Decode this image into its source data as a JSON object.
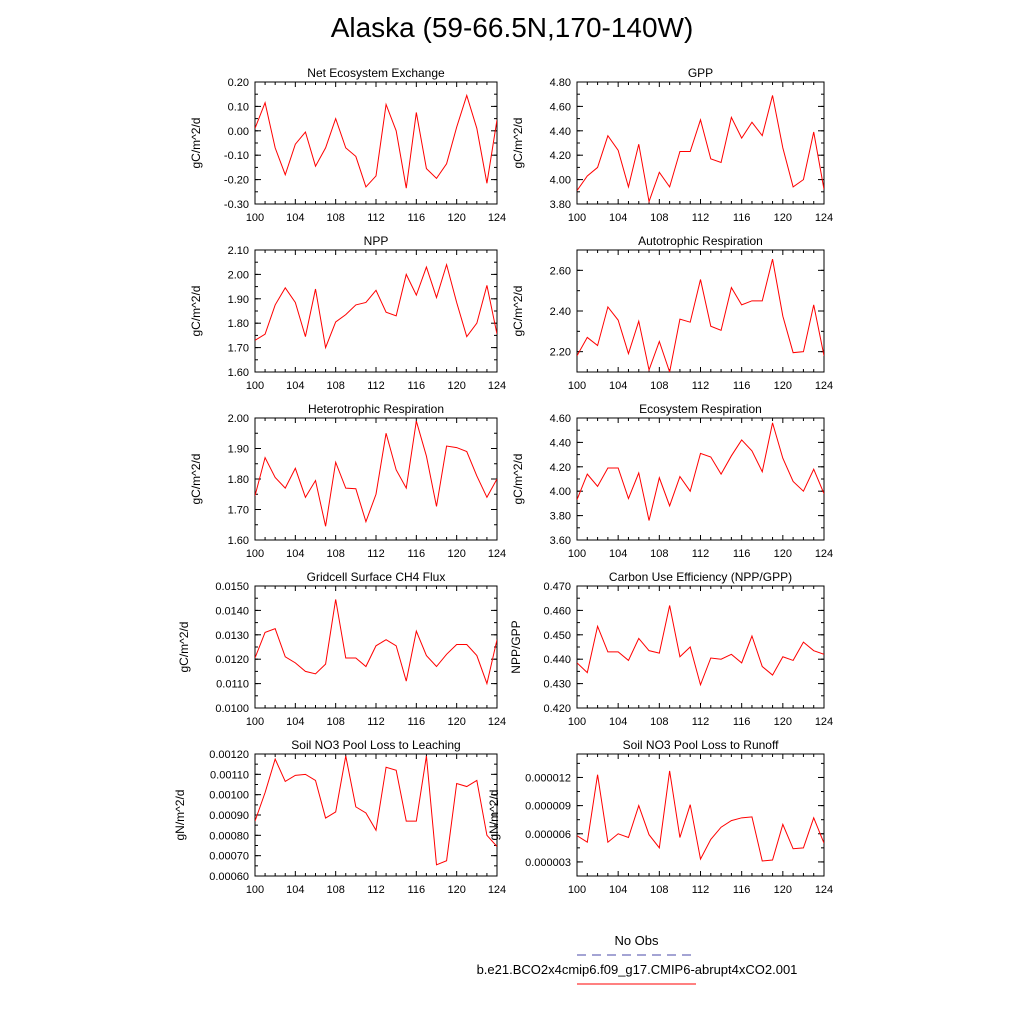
{
  "title": "Alaska (59-66.5N,170-140W)",
  "colors": {
    "model_line": "#ff0000",
    "obs_line": "#4a4aaa",
    "axis": "#000000"
  },
  "legend": {
    "obs_label": "No Obs",
    "model_label": "b.e21.BCO2x4cmip6.f09_g17.CMIP6-abrupt4xCO2.001"
  },
  "chart_data": [
    {
      "type": "line",
      "title": "Net Ecosystem Exchange",
      "ylabel": "gC/m^2/d",
      "xlim": [
        100,
        124
      ],
      "ylim": [
        -0.3,
        0.2
      ],
      "xticks": [
        100,
        104,
        108,
        112,
        116,
        120,
        124
      ],
      "yticks": [
        -0.3,
        -0.2,
        -0.1,
        0.0,
        0.1,
        0.2
      ],
      "yticklabels": [
        "-0.30",
        "-0.20",
        "-0.10",
        "0.00",
        "0.10",
        "0.20"
      ],
      "x": [
        100,
        101,
        102,
        103,
        104,
        105,
        106,
        107,
        108,
        109,
        110,
        111,
        112,
        113,
        114,
        115,
        116,
        117,
        118,
        119,
        120,
        121,
        122,
        123,
        124
      ],
      "values": [
        0.01,
        0.115,
        -0.07,
        -0.18,
        -0.055,
        -0.005,
        -0.145,
        -0.07,
        0.05,
        -0.07,
        -0.105,
        -0.23,
        -0.185,
        0.108,
        0.0,
        -0.235,
        0.075,
        -0.155,
        -0.195,
        -0.135,
        0.015,
        0.145,
        0.01,
        -0.215,
        0.045
      ]
    },
    {
      "type": "line",
      "title": "GPP",
      "ylabel": "gC/m^2/d",
      "xlim": [
        100,
        124
      ],
      "ylim": [
        3.8,
        4.8
      ],
      "xticks": [
        100,
        104,
        108,
        112,
        116,
        120,
        124
      ],
      "yticks": [
        3.8,
        4.0,
        4.2,
        4.4,
        4.6,
        4.8
      ],
      "yticklabels": [
        "3.80",
        "4.00",
        "4.20",
        "4.40",
        "4.60",
        "4.80"
      ],
      "x": [
        100,
        101,
        102,
        103,
        104,
        105,
        106,
        107,
        108,
        109,
        110,
        111,
        112,
        113,
        114,
        115,
        116,
        117,
        118,
        119,
        120,
        121,
        122,
        123,
        124
      ],
      "values": [
        3.91,
        4.03,
        4.1,
        4.36,
        4.24,
        3.94,
        4.29,
        3.82,
        4.06,
        3.94,
        4.23,
        4.23,
        4.49,
        4.17,
        4.14,
        4.51,
        4.34,
        4.47,
        4.36,
        4.69,
        4.26,
        3.94,
        4.0,
        4.39,
        3.92
      ]
    },
    {
      "type": "line",
      "title": "NPP",
      "ylabel": "gC/m^2/d",
      "xlim": [
        100,
        124
      ],
      "ylim": [
        1.6,
        2.1
      ],
      "xticks": [
        100,
        104,
        108,
        112,
        116,
        120,
        124
      ],
      "yticks": [
        1.6,
        1.7,
        1.8,
        1.9,
        2.0,
        2.1
      ],
      "yticklabels": [
        "1.60",
        "1.70",
        "1.80",
        "1.90",
        "2.00",
        "2.10"
      ],
      "x": [
        100,
        101,
        102,
        103,
        104,
        105,
        106,
        107,
        108,
        109,
        110,
        111,
        112,
        113,
        114,
        115,
        116,
        117,
        118,
        119,
        120,
        121,
        122,
        123,
        124
      ],
      "values": [
        1.73,
        1.755,
        1.875,
        1.945,
        1.885,
        1.745,
        1.94,
        1.7,
        1.805,
        1.835,
        1.875,
        1.885,
        1.935,
        1.845,
        1.83,
        2.0,
        1.915,
        2.03,
        1.905,
        2.04,
        1.885,
        1.745,
        1.8,
        1.955,
        1.755
      ]
    },
    {
      "type": "line",
      "title": "Autotrophic Respiration",
      "ylabel": "gC/m^2/d",
      "xlim": [
        100,
        124
      ],
      "ylim": [
        2.1,
        2.7
      ],
      "xticks": [
        100,
        104,
        108,
        112,
        116,
        120,
        124
      ],
      "yticks": [
        2.2,
        2.4,
        2.6
      ],
      "yticklabels": [
        "2.20",
        "2.40",
        "2.60"
      ],
      "x": [
        100,
        101,
        102,
        103,
        104,
        105,
        106,
        107,
        108,
        109,
        110,
        111,
        112,
        113,
        114,
        115,
        116,
        117,
        118,
        119,
        120,
        121,
        122,
        123,
        124
      ],
      "values": [
        2.18,
        2.27,
        2.23,
        2.42,
        2.355,
        2.19,
        2.35,
        2.11,
        2.25,
        2.1,
        2.36,
        2.345,
        2.555,
        2.325,
        2.305,
        2.515,
        2.43,
        2.45,
        2.45,
        2.655,
        2.375,
        2.195,
        2.2,
        2.43,
        2.18
      ]
    },
    {
      "type": "line",
      "title": "Heterotrophic Respiration",
      "ylabel": "gC/m^2/d",
      "xlim": [
        100,
        124
      ],
      "ylim": [
        1.6,
        2.0
      ],
      "xticks": [
        100,
        104,
        108,
        112,
        116,
        120,
        124
      ],
      "yticks": [
        1.6,
        1.7,
        1.8,
        1.9,
        2.0
      ],
      "yticklabels": [
        "1.60",
        "1.70",
        "1.80",
        "1.90",
        "2.00"
      ],
      "x": [
        100,
        101,
        102,
        103,
        104,
        105,
        106,
        107,
        108,
        109,
        110,
        111,
        112,
        113,
        114,
        115,
        116,
        117,
        118,
        119,
        120,
        121,
        122,
        123,
        124
      ],
      "values": [
        1.745,
        1.87,
        1.805,
        1.77,
        1.835,
        1.74,
        1.795,
        1.645,
        1.855,
        1.77,
        1.768,
        1.66,
        1.75,
        1.95,
        1.83,
        1.77,
        1.99,
        1.875,
        1.71,
        1.908,
        1.903,
        1.89,
        1.81,
        1.74,
        1.8
      ]
    },
    {
      "type": "line",
      "title": "Ecosystem Respiration",
      "ylabel": "gC/m^2/d",
      "xlim": [
        100,
        124
      ],
      "ylim": [
        3.6,
        4.6
      ],
      "xticks": [
        100,
        104,
        108,
        112,
        116,
        120,
        124
      ],
      "yticks": [
        3.6,
        3.8,
        4.0,
        4.2,
        4.4,
        4.6
      ],
      "yticklabels": [
        "3.60",
        "3.80",
        "4.00",
        "4.20",
        "4.40",
        "4.60"
      ],
      "x": [
        100,
        101,
        102,
        103,
        104,
        105,
        106,
        107,
        108,
        109,
        110,
        111,
        112,
        113,
        114,
        115,
        116,
        117,
        118,
        119,
        120,
        121,
        122,
        123,
        124
      ],
      "values": [
        3.93,
        4.14,
        4.04,
        4.19,
        4.19,
        3.94,
        4.15,
        3.76,
        4.11,
        3.88,
        4.12,
        4.0,
        4.31,
        4.28,
        4.14,
        4.29,
        4.42,
        4.33,
        4.16,
        4.56,
        4.27,
        4.08,
        4.0,
        4.18,
        3.98
      ]
    },
    {
      "type": "line",
      "title": "Gridcell Surface CH4 Flux",
      "ylabel": "gC/m^2/d",
      "xlim": [
        100,
        124
      ],
      "ylim": [
        0.01,
        0.015
      ],
      "xticks": [
        100,
        104,
        108,
        112,
        116,
        120,
        124
      ],
      "yticks": [
        0.01,
        0.011,
        0.012,
        0.013,
        0.014,
        0.015
      ],
      "yticklabels": [
        "0.0100",
        "0.0110",
        "0.0120",
        "0.0130",
        "0.0140",
        "0.0150"
      ],
      "x": [
        100,
        101,
        102,
        103,
        104,
        105,
        106,
        107,
        108,
        109,
        110,
        111,
        112,
        113,
        114,
        115,
        116,
        117,
        118,
        119,
        120,
        121,
        122,
        123,
        124
      ],
      "values": [
        0.01205,
        0.0131,
        0.01325,
        0.0121,
        0.01185,
        0.0115,
        0.0114,
        0.0118,
        0.01445,
        0.01205,
        0.01205,
        0.0117,
        0.01255,
        0.0128,
        0.01255,
        0.0111,
        0.01315,
        0.01215,
        0.0117,
        0.0122,
        0.0126,
        0.0126,
        0.01215,
        0.011,
        0.0128
      ]
    },
    {
      "type": "line",
      "title": "Carbon Use Efficiency (NPP/GPP)",
      "ylabel": "NPP/GPP",
      "xlim": [
        100,
        124
      ],
      "ylim": [
        0.42,
        0.47
      ],
      "xticks": [
        100,
        104,
        108,
        112,
        116,
        120,
        124
      ],
      "yticks": [
        0.42,
        0.43,
        0.44,
        0.45,
        0.46,
        0.47
      ],
      "yticklabels": [
        "0.420",
        "0.430",
        "0.440",
        "0.450",
        "0.460",
        "0.470"
      ],
      "x": [
        100,
        101,
        102,
        103,
        104,
        105,
        106,
        107,
        108,
        109,
        110,
        111,
        112,
        113,
        114,
        115,
        116,
        117,
        118,
        119,
        120,
        121,
        122,
        123,
        124
      ],
      "values": [
        0.4385,
        0.4345,
        0.4535,
        0.443,
        0.443,
        0.4395,
        0.4485,
        0.4435,
        0.4425,
        0.462,
        0.441,
        0.445,
        0.4295,
        0.4405,
        0.44,
        0.442,
        0.4385,
        0.4495,
        0.437,
        0.4335,
        0.441,
        0.4395,
        0.447,
        0.4435,
        0.442
      ]
    },
    {
      "type": "line",
      "title": "Soil NO3 Pool Loss to Leaching",
      "ylabel": "gN/m^2/d",
      "xlim": [
        100,
        124
      ],
      "ylim": [
        0.0006,
        0.0012
      ],
      "xticks": [
        100,
        104,
        108,
        112,
        116,
        120,
        124
      ],
      "yticks": [
        0.0006,
        0.0007,
        0.0008,
        0.0009,
        0.001,
        0.0011,
        0.0012
      ],
      "yticklabels": [
        "0.00060",
        "0.00070",
        "0.00080",
        "0.00090",
        "0.00100",
        "0.00110",
        "0.00120"
      ],
      "x": [
        100,
        101,
        102,
        103,
        104,
        105,
        106,
        107,
        108,
        109,
        110,
        111,
        112,
        113,
        114,
        115,
        116,
        117,
        118,
        119,
        120,
        121,
        122,
        123,
        124
      ],
      "values": [
        0.00087,
        0.00101,
        0.001175,
        0.001065,
        0.001095,
        0.0011,
        0.00107,
        0.000885,
        0.000915,
        0.00119,
        0.00094,
        0.00091,
        0.000825,
        0.001135,
        0.00112,
        0.00087,
        0.00087,
        0.00119,
        0.000655,
        0.000675,
        0.001055,
        0.00104,
        0.00107,
        0.0008,
        0.000745
      ]
    },
    {
      "type": "line",
      "title": "Soil NO3 Pool Loss to Runoff",
      "ylabel": "gN/m^2/d",
      "xlim": [
        100,
        124
      ],
      "ylim": [
        1.5e-06,
        1.45e-05
      ],
      "xticks": [
        100,
        104,
        108,
        112,
        116,
        120,
        124
      ],
      "yticks": [
        3e-06,
        6e-06,
        9e-06,
        1.2e-05
      ],
      "yticklabels": [
        "0.000003",
        "0.000006",
        "0.000009",
        "0.000012"
      ],
      "x": [
        100,
        101,
        102,
        103,
        104,
        105,
        106,
        107,
        108,
        109,
        110,
        111,
        112,
        113,
        114,
        115,
        116,
        117,
        118,
        119,
        120,
        121,
        122,
        123,
        124
      ],
      "values": [
        5.8e-06,
        5.1e-06,
        1.23e-05,
        5.1e-06,
        6e-06,
        5.6e-06,
        9e-06,
        5.9e-06,
        4.5e-06,
        1.27e-05,
        5.6e-06,
        9.1e-06,
        3.3e-06,
        5.4e-06,
        6.7e-06,
        7.4e-06,
        7.7e-06,
        7.8e-06,
        3.1e-06,
        3.2e-06,
        7e-06,
        4.4e-06,
        4.5e-06,
        7.7e-06,
        5e-06
      ]
    }
  ]
}
